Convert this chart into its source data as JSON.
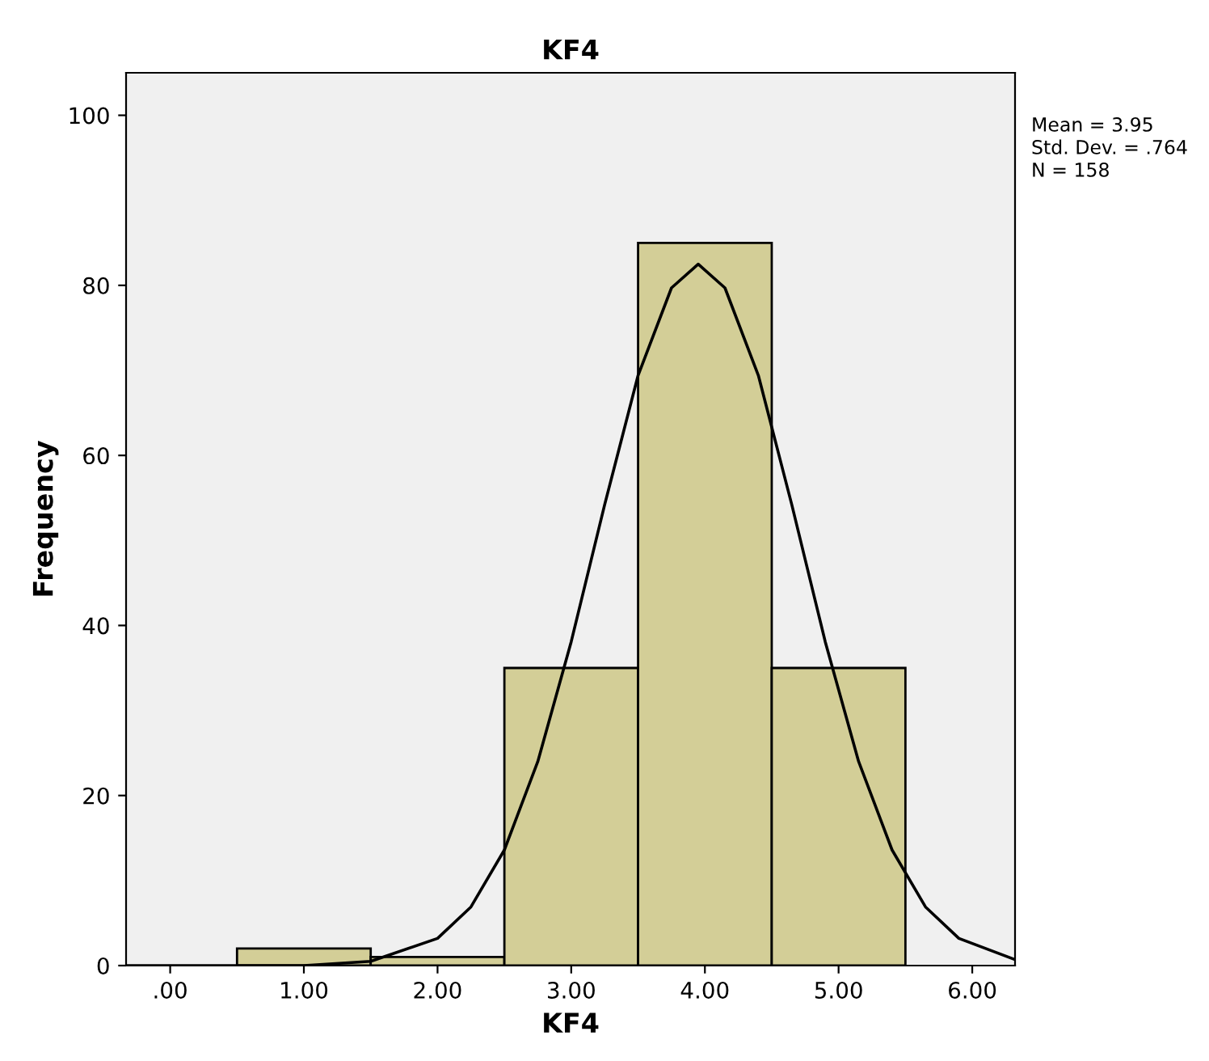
{
  "chart_data": {
    "type": "histogram",
    "title": "KF4",
    "xlabel": "KF4",
    "ylabel": "Frequency",
    "bins": [
      0.5,
      1.5,
      2.5,
      3.5,
      4.5,
      5.5
    ],
    "values": [
      2,
      1,
      35,
      85,
      35
    ],
    "color": "#d3ce97",
    "series": [
      {
        "type": "line",
        "color": "#000000",
        "x": [
          -0.33,
          1.0,
          1.5,
          2.0,
          2.25,
          2.5,
          2.75,
          3.0,
          3.25,
          3.5,
          3.75,
          3.95,
          4.15,
          4.4,
          4.65,
          4.9,
          5.15,
          5.4,
          5.65,
          5.9,
          6.32
        ],
        "values": [
          0,
          0,
          0.5,
          3.2,
          6.9,
          13.6,
          24,
          38.1,
          54.2,
          69.4,
          79.7,
          82.5,
          79.7,
          69.4,
          54.2,
          38.1,
          24,
          13.6,
          6.9,
          3.2,
          0.7
        ]
      }
    ],
    "xlim": [
      -0.33,
      6.32
    ],
    "ylim": [
      0,
      105
    ],
    "xticks": [
      {
        "value": 0,
        "label": ".00"
      },
      {
        "value": 1,
        "label": "1.00"
      },
      {
        "value": 2,
        "label": "2.00"
      },
      {
        "value": 3,
        "label": "3.00"
      },
      {
        "value": 4,
        "label": "4.00"
      },
      {
        "value": 5,
        "label": "5.00"
      },
      {
        "value": 6,
        "label": "6.00"
      }
    ],
    "yticks": [
      0,
      20,
      40,
      60,
      80,
      100
    ],
    "annotations": [
      "Mean = 3.95",
      "Std. Dev. = .764",
      "N = 158"
    ],
    "grid": false
  }
}
